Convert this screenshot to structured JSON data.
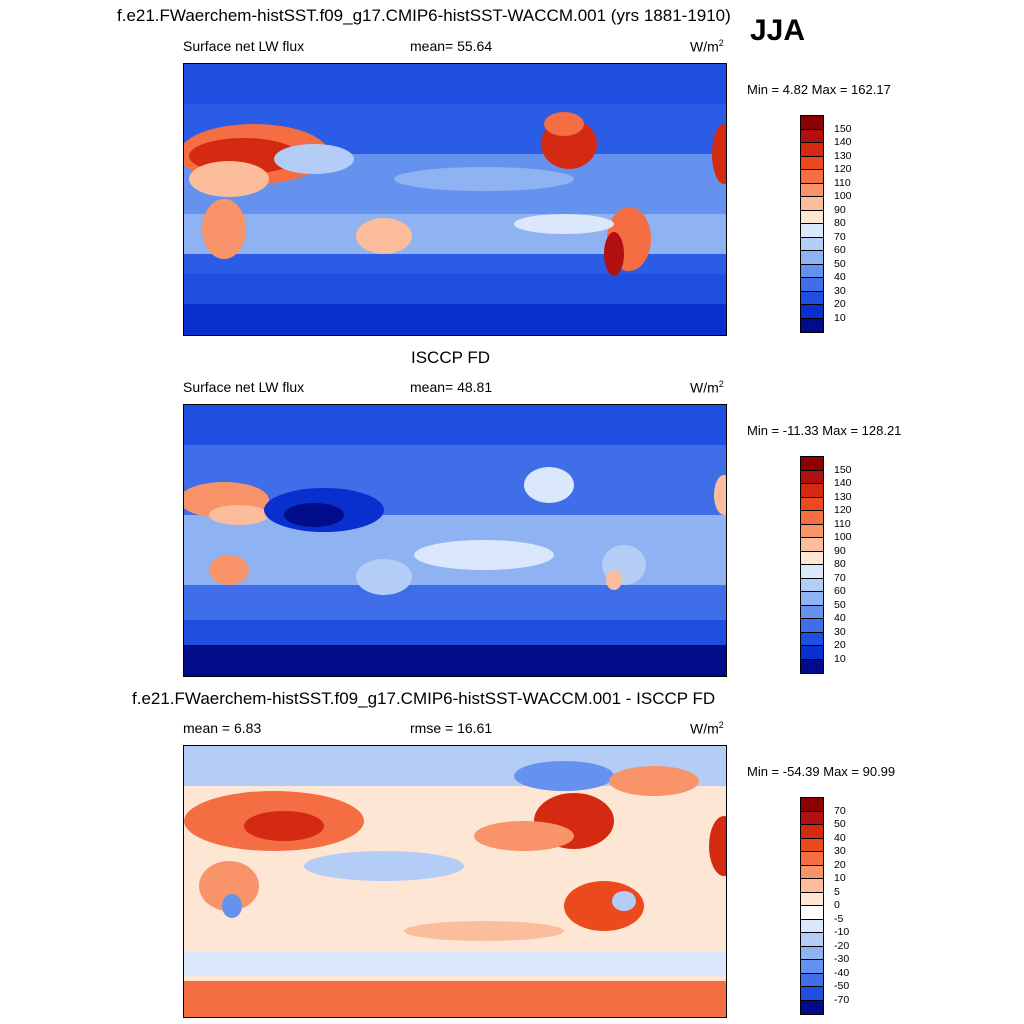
{
  "season": "JJA",
  "panels": [
    {
      "title": "f.e21.FWaerchem-histSST.f09_g17.CMIP6-histSST-WACCM.001 (yrs 1881-1910)",
      "left_label": "Surface net LW flux",
      "center_label": "mean=  55.64",
      "units": "W/m",
      "units_sup": "2",
      "minmax": "Min =   4.82 Max = 162.17",
      "colorbar_ticks": [
        "150",
        "140",
        "130",
        "120",
        "110",
        "100",
        "90",
        "80",
        "70",
        "60",
        "50",
        "40",
        "30",
        "20",
        "10"
      ]
    },
    {
      "title": "ISCCP FD",
      "left_label": "Surface net LW flux",
      "center_label": "mean=  48.81",
      "units": "W/m",
      "units_sup": "2",
      "minmax": "Min = -11.33 Max = 128.21",
      "colorbar_ticks": [
        "150",
        "140",
        "130",
        "120",
        "110",
        "100",
        "90",
        "80",
        "70",
        "60",
        "50",
        "40",
        "30",
        "20",
        "10"
      ]
    },
    {
      "title": "f.e21.FWaerchem-histSST.f09_g17.CMIP6-histSST-WACCM.001 - ISCCP FD",
      "left_label": "mean =   6.83",
      "center_label": "rmse =  16.61",
      "units": "W/m",
      "units_sup": "2",
      "minmax": "Min = -54.39 Max =  90.99",
      "colorbar_ticks": [
        "70",
        "50",
        "40",
        "30",
        "20",
        "10",
        "5",
        "0",
        "-5",
        "-10",
        "-20",
        "-30",
        "-40",
        "-50",
        "-70"
      ]
    }
  ],
  "colors": {
    "abs_scale": [
      "#8b0000",
      "#b01010",
      "#d42a12",
      "#ec4a1e",
      "#f46d43",
      "#f8936a",
      "#fbbd9b",
      "#fde7d4",
      "#dbe7fb",
      "#b4cdf6",
      "#8fb2f2",
      "#6592ee",
      "#3f6ee8",
      "#1f4fe0",
      "#0a2fcf",
      "#000c8a"
    ],
    "diff_scale": [
      "#8b0000",
      "#b01010",
      "#d42a12",
      "#ec4a1e",
      "#f46d43",
      "#f8936a",
      "#fbbd9b",
      "#fde7d4",
      "#ffffff",
      "#dbe7fb",
      "#b4cdf6",
      "#8fb2f2",
      "#6592ee",
      "#3f6ee8",
      "#1f4fe0",
      "#000c8a"
    ]
  },
  "chart_data": [
    {
      "type": "heatmap",
      "title": "f.e21.FWaerchem-histSST.f09_g17.CMIP6-histSST-WACCM.001 (yrs 1881-1910)",
      "variable": "Surface net LW flux",
      "mean": 55.64,
      "min": 4.82,
      "max": 162.17,
      "units": "W/m2",
      "levels": [
        10,
        20,
        30,
        40,
        50,
        60,
        70,
        80,
        90,
        100,
        110,
        120,
        130,
        140,
        150
      ]
    },
    {
      "type": "heatmap",
      "title": "ISCCP FD",
      "variable": "Surface net LW flux",
      "mean": 48.81,
      "min": -11.33,
      "max": 128.21,
      "units": "W/m2",
      "levels": [
        10,
        20,
        30,
        40,
        50,
        60,
        70,
        80,
        90,
        100,
        110,
        120,
        130,
        140,
        150
      ]
    },
    {
      "type": "heatmap",
      "title": "f.e21.FWaerchem-histSST.f09_g17.CMIP6-histSST-WACCM.001 - ISCCP FD",
      "mean": 6.83,
      "rmse": 16.61,
      "min": -54.39,
      "max": 90.99,
      "units": "W/m2",
      "levels": [
        -70,
        -50,
        -40,
        -30,
        -20,
        -10,
        -5,
        0,
        5,
        10,
        20,
        30,
        40,
        50,
        70
      ]
    }
  ]
}
